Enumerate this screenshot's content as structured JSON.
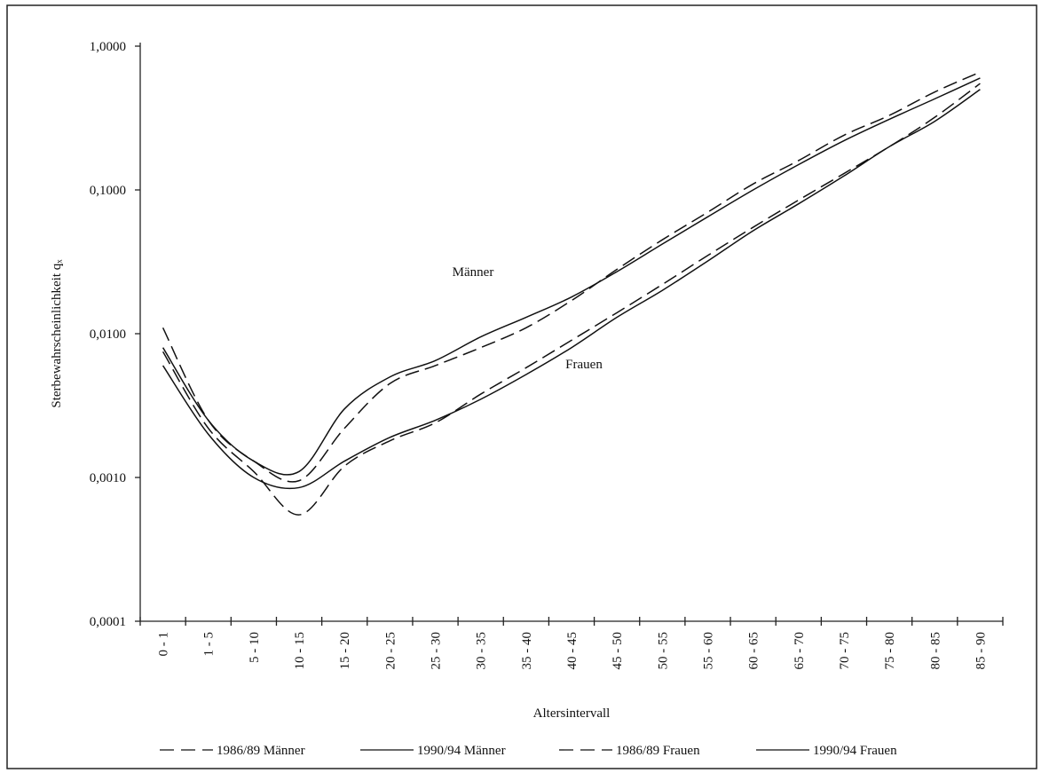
{
  "chart_data": {
    "type": "line",
    "ylabel": "Sterbewahrscheinlichkeit qₓ",
    "xlabel": "Altersintervall",
    "log_scale_y": true,
    "categories": [
      "0 - 1",
      "1 - 5",
      "5 - 10",
      "10 - 15",
      "15 - 20",
      "20 - 25",
      "25 - 30",
      "30 - 35",
      "35 - 40",
      "40 - 45",
      "45 - 50",
      "50 - 55",
      "55 - 60",
      "60 - 65",
      "65 - 70",
      "70 - 75",
      "75 - 80",
      "80 - 85",
      "85 - 90"
    ],
    "ylim": [
      0.0001,
      1
    ],
    "yticks": [
      {
        "value": 0.0001,
        "label": "0,0001"
      },
      {
        "value": 0.001,
        "label": "0,0010"
      },
      {
        "value": 0.01,
        "label": "0,0100"
      },
      {
        "value": 0.1,
        "label": "0,1000"
      },
      {
        "value": 1,
        "label": "1,0000"
      }
    ],
    "series": [
      {
        "name": "1986/89 Männer",
        "color": "#111111",
        "line_style": "dashed",
        "values": [
          0.011,
          0.0025,
          0.0013,
          0.00095,
          0.0022,
          0.0045,
          0.006,
          0.008,
          0.011,
          0.017,
          0.028,
          0.045,
          0.07,
          0.11,
          0.16,
          0.24,
          0.33,
          0.48,
          0.66
        ]
      },
      {
        "name": "1990/94 Männer",
        "color": "#111111",
        "line_style": "solid",
        "values": [
          0.008,
          0.0025,
          0.0013,
          0.0011,
          0.003,
          0.005,
          0.0065,
          0.0095,
          0.013,
          0.018,
          0.027,
          0.042,
          0.065,
          0.1,
          0.15,
          0.22,
          0.31,
          0.43,
          0.6
        ]
      },
      {
        "name": "1986/89 Frauen",
        "color": "#111111",
        "line_style": "dashed",
        "values": [
          0.0075,
          0.0022,
          0.0011,
          0.00055,
          0.0012,
          0.0018,
          0.0024,
          0.0038,
          0.0058,
          0.009,
          0.014,
          0.022,
          0.035,
          0.055,
          0.085,
          0.13,
          0.2,
          0.32,
          0.55
        ]
      },
      {
        "name": "1990/94 Frauen",
        "color": "#111111",
        "line_style": "solid",
        "values": [
          0.006,
          0.002,
          0.001,
          0.00085,
          0.0013,
          0.0019,
          0.0025,
          0.0035,
          0.0052,
          0.008,
          0.013,
          0.02,
          0.032,
          0.052,
          0.08,
          0.125,
          0.2,
          0.3,
          0.5
        ]
      }
    ],
    "annotations": [
      "Männer",
      "Frauen"
    ]
  }
}
